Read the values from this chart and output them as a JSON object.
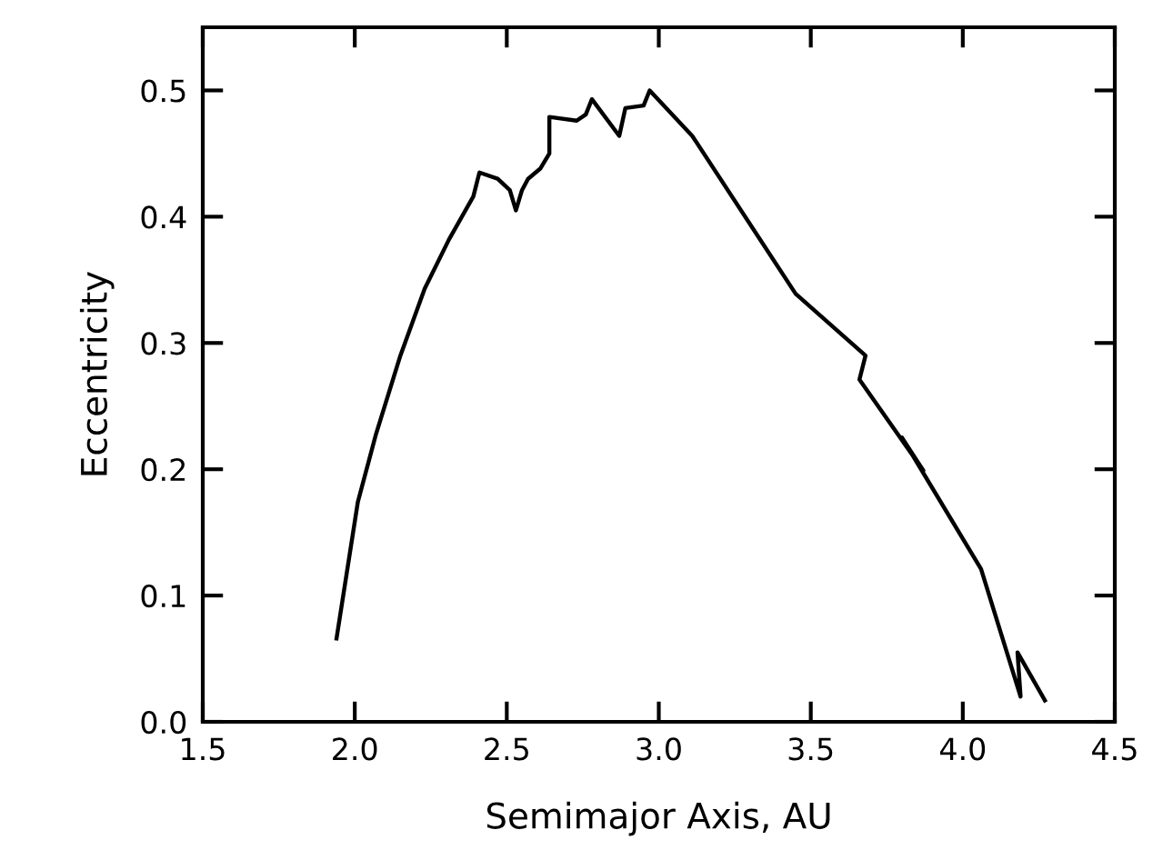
{
  "chart_data": {
    "type": "line",
    "xlabel": "Semimajor Axis, AU",
    "ylabel": "Eccentricity",
    "x": [
      1.94,
      2.01,
      2.07,
      2.15,
      2.23,
      2.31,
      2.39,
      2.41,
      2.47,
      2.51,
      2.53,
      2.55,
      2.57,
      2.61,
      2.64,
      2.64,
      2.73,
      2.76,
      2.78,
      2.87,
      2.89,
      2.95,
      2.97,
      3.11,
      3.45,
      3.68,
      3.66,
      3.87,
      3.8,
      4.06,
      4.19,
      4.18,
      4.27
    ],
    "series": [
      {
        "color": "#000000",
        "values": [
          0.066,
          0.174,
          0.228,
          0.29,
          0.343,
          0.382,
          0.416,
          0.435,
          0.43,
          0.421,
          0.405,
          0.421,
          0.43,
          0.438,
          0.45,
          0.479,
          0.476,
          0.481,
          0.493,
          0.464,
          0.486,
          0.488,
          0.5,
          0.464,
          0.339,
          0.29,
          0.271,
          0.199,
          0.225,
          0.121,
          0.02,
          0.055,
          0.017
        ]
      }
    ],
    "xlim": [
      1.5,
      4.5
    ],
    "ylim": [
      0,
      0.55
    ],
    "xticks": [
      1.5,
      {
        "value": 2,
        "label": "2.0"
      },
      2.5,
      {
        "value": 3,
        "label": "3.0"
      },
      3.5,
      {
        "value": 4,
        "label": "4.0"
      },
      4.5
    ],
    "yticks": [
      {
        "value": 0,
        "label": "0.0"
      },
      0.1,
      0.2,
      0.3,
      0.4,
      0.5
    ],
    "grid": false,
    "legend": false,
    "marker": "none",
    "line_style": "solid"
  }
}
